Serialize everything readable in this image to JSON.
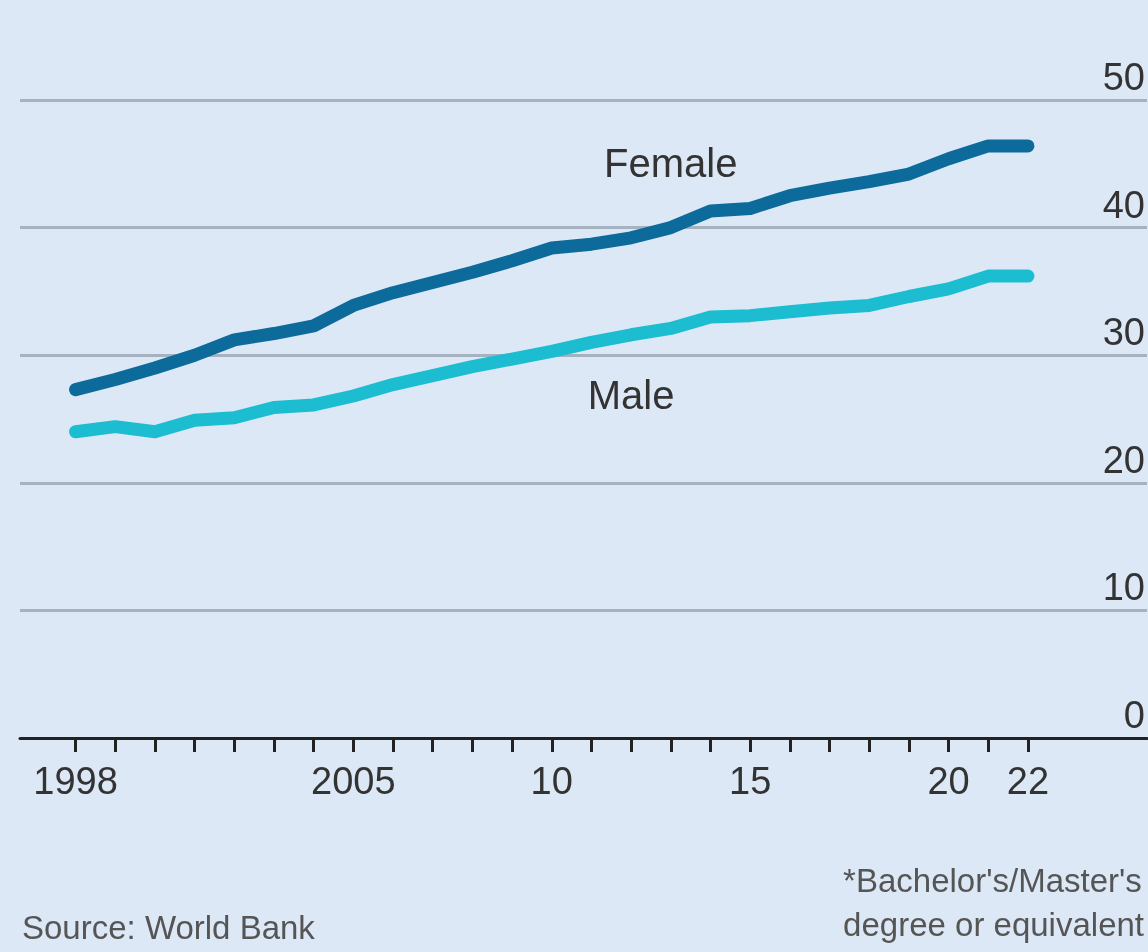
{
  "chart_data": {
    "type": "line",
    "x": [
      1998,
      1999,
      2000,
      2001,
      2002,
      2003,
      2004,
      2005,
      2006,
      2007,
      2008,
      2009,
      2010,
      2011,
      2012,
      2013,
      2014,
      2015,
      2016,
      2017,
      2018,
      2019,
      2020,
      2021,
      2022
    ],
    "series": [
      {
        "name": "Female",
        "color": "#0d6b9c",
        "values": [
          27.3,
          28.1,
          29.0,
          30.0,
          31.2,
          31.7,
          32.3,
          33.9,
          34.9,
          35.7,
          36.5,
          37.4,
          38.4,
          38.7,
          39.2,
          40.0,
          41.3,
          41.5,
          42.5,
          43.1,
          43.6,
          44.2,
          45.4,
          46.4,
          46.4
        ]
      },
      {
        "name": "Male",
        "color": "#1cbdd0",
        "values": [
          24.0,
          24.4,
          24.0,
          24.9,
          25.1,
          25.9,
          26.1,
          26.8,
          27.7,
          28.4,
          29.1,
          29.7,
          30.3,
          31.0,
          31.6,
          32.1,
          33.0,
          33.1,
          33.4,
          33.7,
          33.9,
          34.6,
          35.2,
          36.2,
          36.2
        ]
      }
    ],
    "xlim": [
      1996.6,
      2025
    ],
    "xticks": [
      1998,
      {
        "value": 1999,
        "label": null
      },
      {
        "value": 2000,
        "label": null
      },
      {
        "value": 2001,
        "label": null
      },
      {
        "value": 2002,
        "label": null
      },
      {
        "value": 2003,
        "label": null
      },
      {
        "value": 2004,
        "label": null
      },
      2005,
      {
        "value": 2006,
        "label": null
      },
      {
        "value": 2007,
        "label": null
      },
      {
        "value": 2008,
        "label": null
      },
      {
        "value": 2009,
        "label": null
      },
      {
        "value": 2010,
        "label": "10"
      },
      {
        "value": 2011,
        "label": null
      },
      {
        "value": 2012,
        "label": null
      },
      {
        "value": 2013,
        "label": null
      },
      {
        "value": 2014,
        "label": null
      },
      {
        "value": 2015,
        "label": "15"
      },
      {
        "value": 2016,
        "label": null
      },
      {
        "value": 2017,
        "label": null
      },
      {
        "value": 2018,
        "label": null
      },
      {
        "value": 2019,
        "label": null
      },
      {
        "value": 2020,
        "label": "20"
      },
      {
        "value": 2021,
        "label": null
      },
      {
        "value": 2022,
        "label": "22"
      }
    ],
    "ylim": [
      0,
      50
    ],
    "yticks": [
      0,
      10,
      20,
      30,
      40,
      50
    ],
    "grid": "y",
    "line_style": "solid",
    "annotations": [
      "Source: World Bank",
      "*Bachelor's/Master's degree or equivalent"
    ]
  }
}
